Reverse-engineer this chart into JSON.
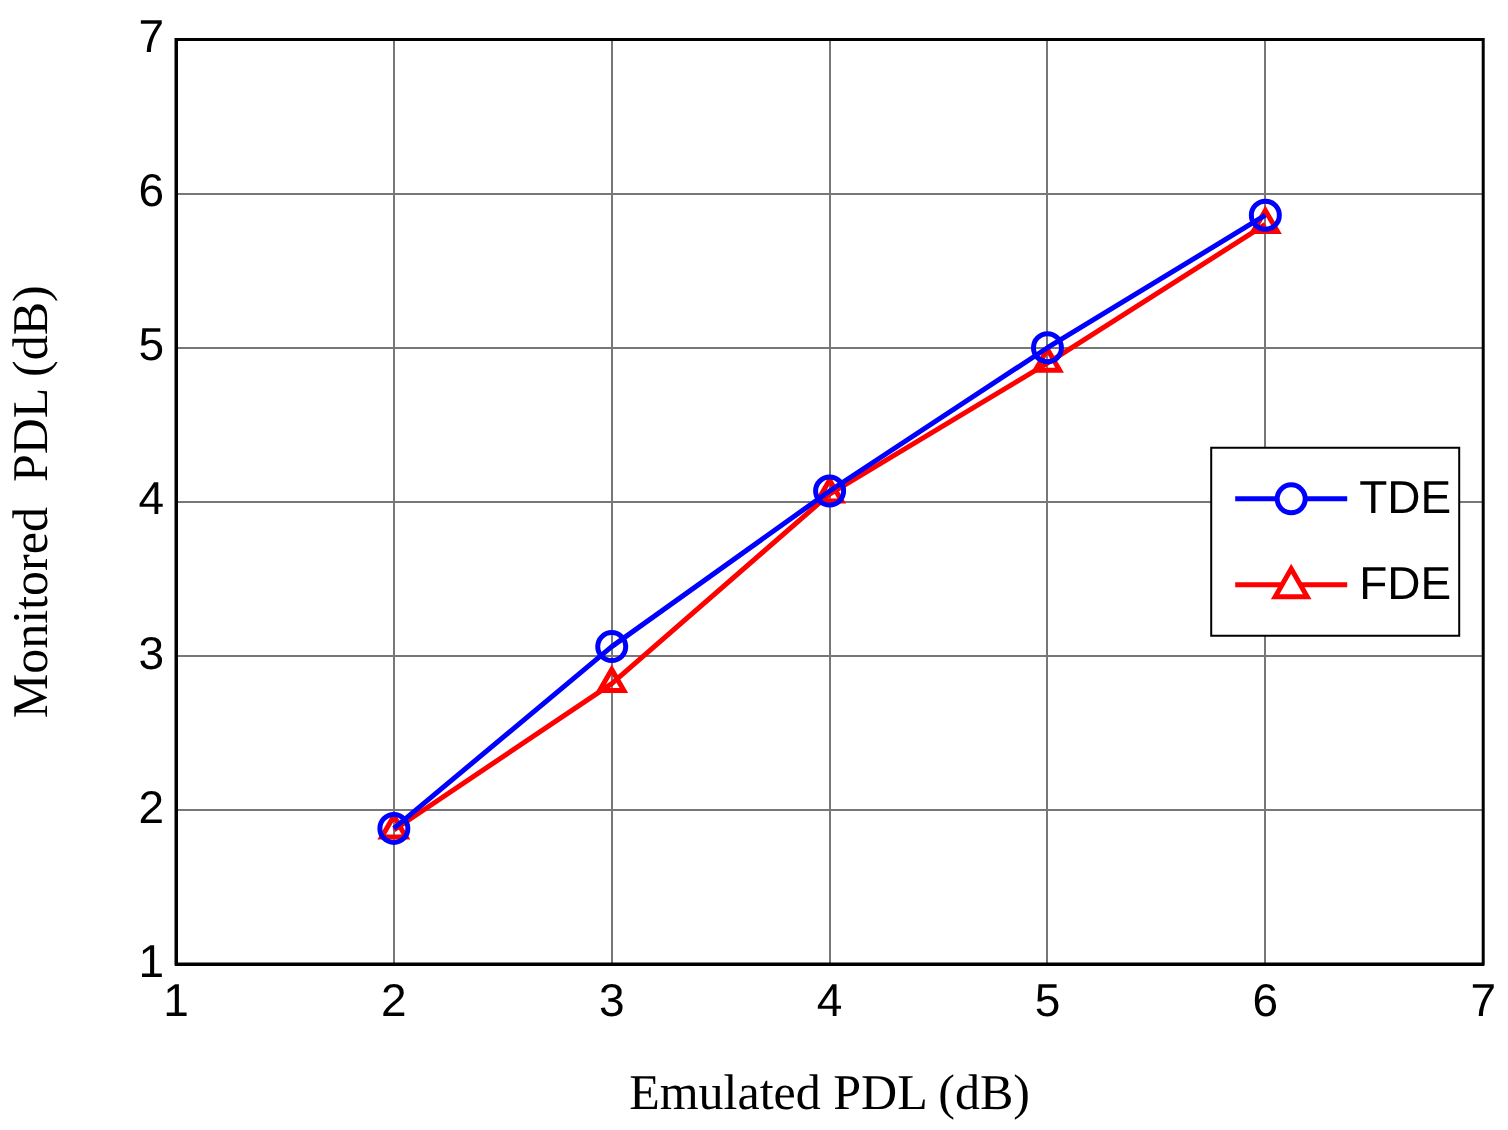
{
  "chart_data": {
    "type": "line",
    "xlabel": "Emulated PDL (dB)",
    "ylabel": "Monitored  PDL (dB)",
    "x": [
      2,
      3,
      4,
      5,
      6
    ],
    "series": [
      {
        "name": "TDE",
        "color": "#0000ff",
        "marker": "circle",
        "values": [
          1.88,
          3.06,
          4.07,
          5.0,
          5.86
        ]
      },
      {
        "name": "FDE",
        "color": "#ff0000",
        "marker": "triangle",
        "values": [
          1.87,
          2.82,
          4.05,
          4.9,
          5.8
        ]
      }
    ],
    "xlim": [
      1,
      7
    ],
    "xticks": [
      1,
      2,
      3,
      4,
      5,
      6,
      7
    ],
    "ylim": [
      1,
      7
    ],
    "yticks": [
      1,
      2,
      3,
      4,
      5,
      6,
      7
    ],
    "grid": true,
    "legend": "right",
    "line_style": "solid"
  }
}
